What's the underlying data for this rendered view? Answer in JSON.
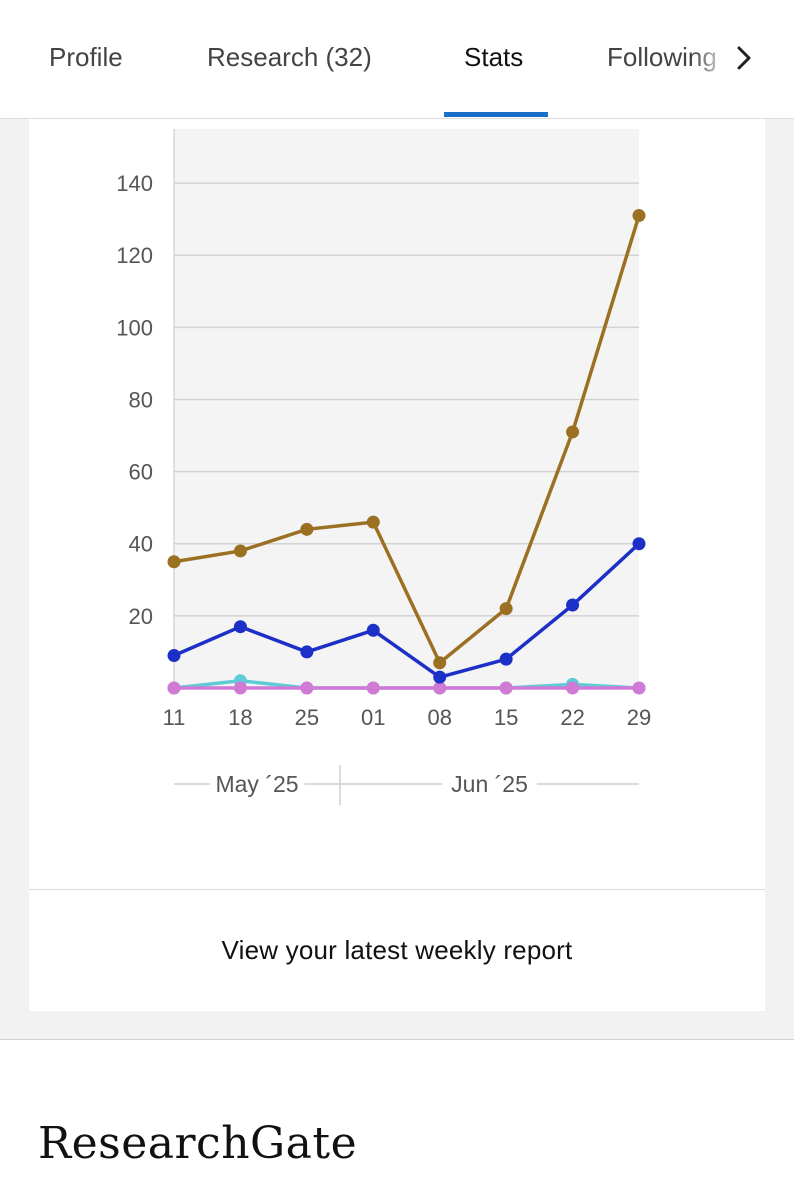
{
  "tabs": [
    {
      "label": "Profile",
      "active": false
    },
    {
      "label": "Research (32)",
      "active": false
    },
    {
      "label": "Stats",
      "active": true
    },
    {
      "label": "Following",
      "active": false
    }
  ],
  "tab_scroll_icon": "chevron-right-icon",
  "report_link": "View your latest weekly report",
  "brand": "ResearchGate",
  "chart_data": {
    "type": "line",
    "x": [
      "11",
      "18",
      "25",
      "01",
      "08",
      "15",
      "22",
      "29"
    ],
    "month_groups": [
      {
        "label": "May ´25",
        "span": [
          "11",
          "25"
        ]
      },
      {
        "label": "Jun ´25",
        "span": [
          "01",
          "29"
        ]
      }
    ],
    "y_ticks": [
      20,
      40,
      60,
      80,
      100,
      120,
      140
    ],
    "ylim": [
      0,
      155
    ],
    "grid": true,
    "series": [
      {
        "color": "#9b7023",
        "values": [
          35,
          38,
          44,
          46,
          7,
          22,
          71,
          131
        ]
      },
      {
        "color": "#1c2fc6",
        "values": [
          9,
          17,
          10,
          16,
          3,
          8,
          23,
          40
        ]
      },
      {
        "color": "#5ecbd6",
        "values": [
          0,
          2,
          0,
          0,
          0,
          0,
          1,
          0
        ]
      },
      {
        "color": "#d07ad6",
        "values": [
          0,
          0,
          0,
          0,
          0,
          0,
          0,
          0
        ]
      }
    ]
  }
}
